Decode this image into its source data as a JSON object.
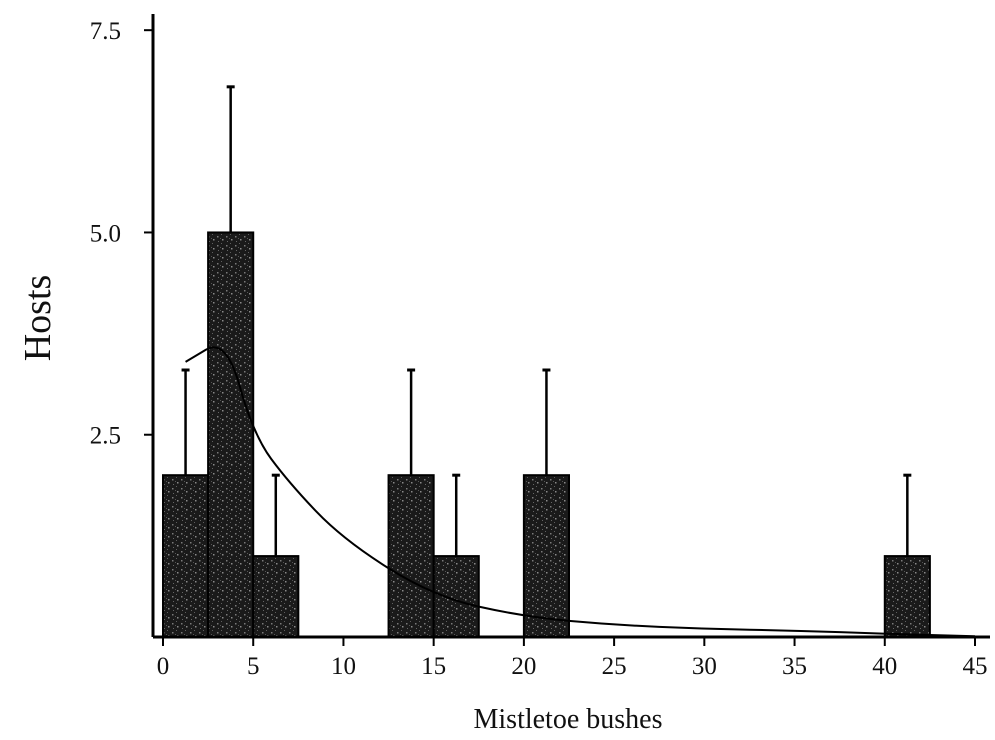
{
  "chart_data": {
    "type": "bar",
    "title": "",
    "xlabel": "Mistletoe bushes",
    "ylabel": "Hosts",
    "xlim": [
      0,
      45
    ],
    "ylim": [
      0,
      7.7
    ],
    "x_ticks": [
      "0",
      "5",
      "10",
      "15",
      "20",
      "25",
      "30",
      "35",
      "40",
      "45"
    ],
    "y_ticks": [
      "2.5",
      "5.0",
      "7.5"
    ],
    "bar_width": 2.5,
    "bars": [
      {
        "x_start": 0,
        "x_end": 2.5,
        "value": 2.0,
        "error_top": 3.3
      },
      {
        "x_start": 2.5,
        "x_end": 5,
        "value": 5.0,
        "error_top": 6.8
      },
      {
        "x_start": 5,
        "x_end": 7.5,
        "value": 1.0,
        "error_top": 2.0
      },
      {
        "x_start": 12.5,
        "x_end": 15,
        "value": 2.0,
        "error_top": 3.3
      },
      {
        "x_start": 15,
        "x_end": 17.5,
        "value": 1.0,
        "error_top": 2.0
      },
      {
        "x_start": 20,
        "x_end": 22.5,
        "value": 2.0,
        "error_top": 3.3
      },
      {
        "x_start": 40,
        "x_end": 42.5,
        "value": 1.0,
        "error_top": 2.0
      }
    ],
    "fit_curve": {
      "x": [
        1.25,
        3.5,
        5,
        7,
        10,
        15,
        20,
        25,
        30,
        35,
        40,
        45
      ],
      "y": [
        3.4,
        3.7,
        2.5,
        1.9,
        1.2,
        0.5,
        0.25,
        0.15,
        0.1,
        0.08,
        0.04,
        0.01
      ]
    },
    "grid": false,
    "legend": "none",
    "colors": {
      "bar_fill": "#1a1a1a",
      "bar_speckle": "#6e6e6e",
      "line": "#000000",
      "axis": "#000000"
    }
  }
}
